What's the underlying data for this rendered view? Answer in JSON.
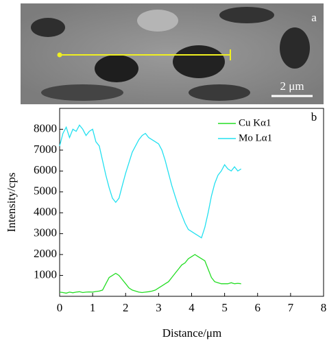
{
  "image": {
    "panel_label": "a",
    "scale_bar": "2 μm"
  },
  "chart_data": {
    "type": "line",
    "panel_label": "b",
    "x_label": "Distance/μm",
    "y_label": "Intensity/cps",
    "x": [
      0,
      0.1,
      0.2,
      0.3,
      0.4,
      0.5,
      0.6,
      0.7,
      0.8,
      0.9,
      1.0,
      1.1,
      1.2,
      1.3,
      1.4,
      1.5,
      1.6,
      1.7,
      1.8,
      1.9,
      2.0,
      2.1,
      2.2,
      2.3,
      2.4,
      2.5,
      2.6,
      2.7,
      2.8,
      2.9,
      3.0,
      3.1,
      3.2,
      3.3,
      3.4,
      3.5,
      3.6,
      3.7,
      3.8,
      3.9,
      4.0,
      4.1,
      4.2,
      4.3,
      4.4,
      4.5,
      4.6,
      4.7,
      4.8,
      4.9,
      5.0,
      5.1,
      5.2,
      5.3,
      5.4,
      5.5
    ],
    "series": [
      {
        "name": "Cu Kα1",
        "color": "#22dd22",
        "values": [
          200,
          180,
          150,
          200,
          170,
          200,
          220,
          180,
          200,
          210,
          200,
          230,
          250,
          300,
          600,
          900,
          1000,
          1100,
          1000,
          800,
          600,
          400,
          300,
          250,
          200,
          180,
          200,
          220,
          250,
          300,
          400,
          500,
          600,
          700,
          900,
          1100,
          1300,
          1500,
          1600,
          1800,
          1900,
          2000,
          1900,
          1800,
          1700,
          1300,
          900,
          700,
          650,
          600,
          600,
          600,
          650,
          600,
          620,
          600
        ]
      },
      {
        "name": "Mo Lα1",
        "color": "#22e0f0",
        "values": [
          7200,
          7800,
          8100,
          7600,
          8000,
          7900,
          8200,
          8000,
          7700,
          7900,
          8000,
          7400,
          7200,
          6500,
          5800,
          5200,
          4700,
          4500,
          4700,
          5300,
          5900,
          6400,
          6900,
          7200,
          7500,
          7700,
          7800,
          7600,
          7500,
          7400,
          7300,
          7000,
          6500,
          5900,
          5300,
          4800,
          4300,
          3900,
          3500,
          3200,
          3100,
          3000,
          2900,
          2800,
          3300,
          4000,
          4800,
          5400,
          5800,
          6000,
          6300,
          6100,
          6000,
          6200,
          6000,
          6100
        ]
      }
    ],
    "xlim": [
      0,
      8
    ],
    "xticks": [
      0,
      1,
      2,
      3,
      4,
      5,
      6,
      7,
      8
    ],
    "ylim": [
      0,
      9000
    ],
    "yticks": [
      1000,
      2000,
      3000,
      4000,
      5000,
      6000,
      7000,
      8000
    ]
  }
}
